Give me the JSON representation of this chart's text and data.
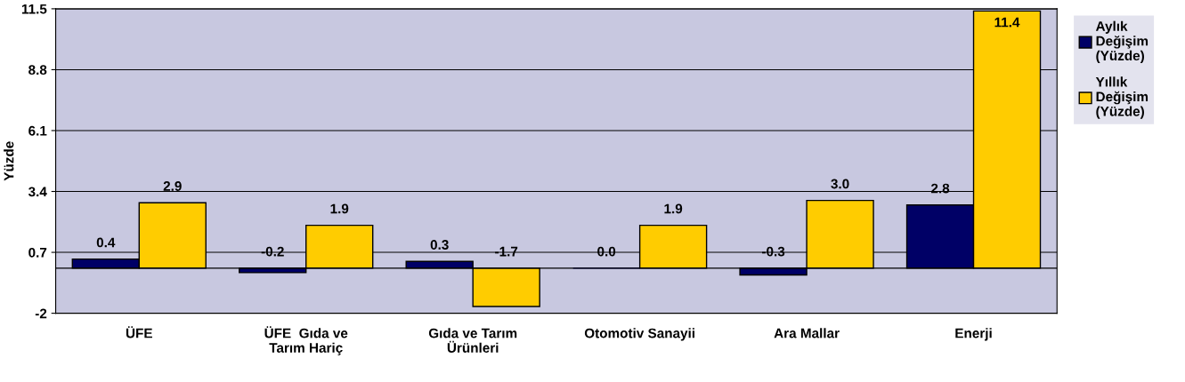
{
  "chart_data": {
    "type": "bar",
    "ylabel": "Yüzde",
    "categories": [
      "ÜFE",
      "ÜFE  Gıda ve\nTarım Hariç",
      "Gıda ve Tarım\nÜrünleri",
      "Otomotiv Sanayii",
      "Ara Mallar",
      "Enerji"
    ],
    "series": [
      {
        "name": "Aylık\nDeğişim\n(Yüzde)",
        "color": "#000066",
        "values": [
          0.4,
          -0.2,
          0.3,
          0.0,
          -0.3,
          2.8
        ],
        "value_labels": [
          "0.4",
          "-0.2",
          "0.3",
          "0.0",
          "-0.3",
          "2.8"
        ]
      },
      {
        "name": "Yıllık\nDeğişim\n(Yüzde)",
        "color": "#ffcc00",
        "values": [
          2.9,
          1.9,
          -1.7,
          1.9,
          3.0,
          11.4
        ],
        "value_labels": [
          "2.9",
          "1.9",
          "-1.7",
          "1.9",
          "3.0",
          "11.4"
        ]
      }
    ],
    "ylim": [
      -2,
      11.5
    ],
    "yticks": [
      -2,
      0.7,
      3.4,
      6.1,
      8.8,
      11.5
    ],
    "grid": "y",
    "legend": "top right"
  }
}
